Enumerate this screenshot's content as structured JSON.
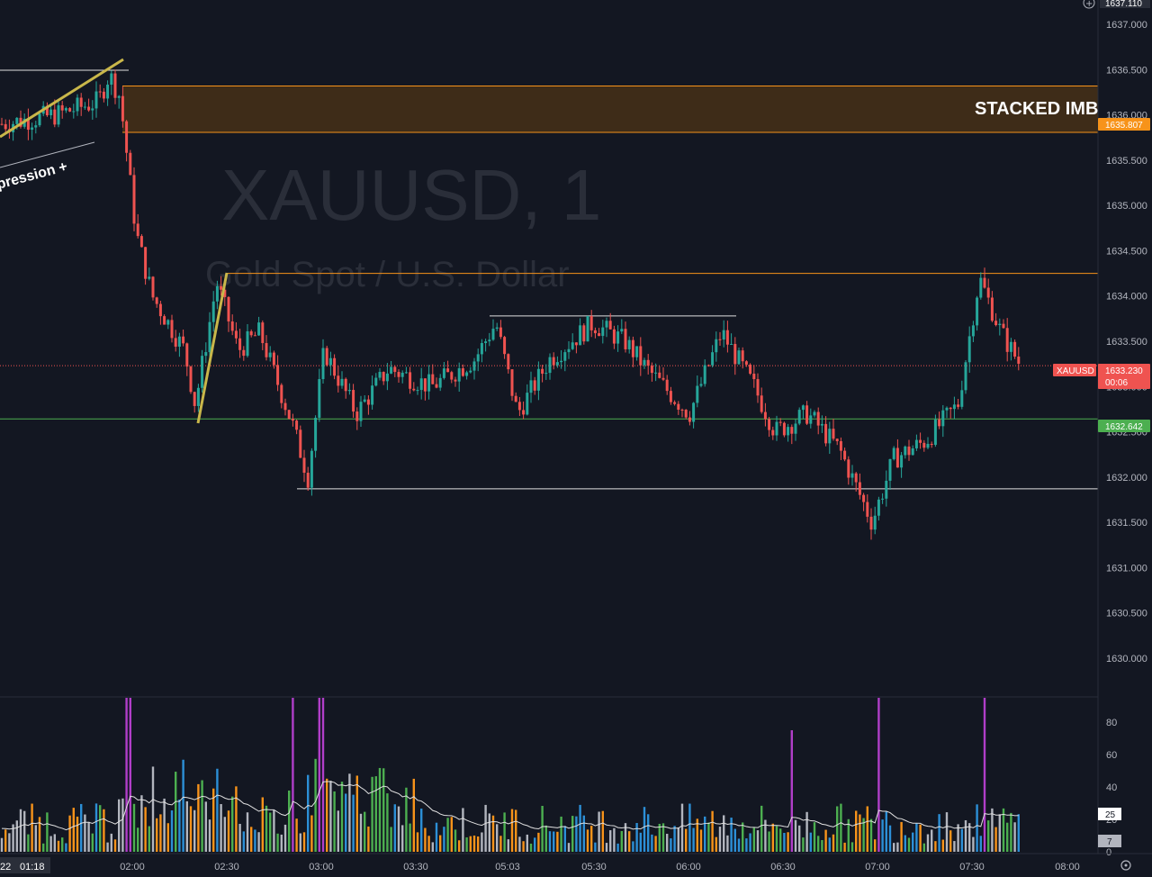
{
  "colors": {
    "background": "#131722",
    "up": "#26a69a",
    "down": "#ef5350",
    "imbalance_fill": "#4a3216",
    "imbalance_line": "#f7931a",
    "support_line": "#4caf50",
    "trend_line": "#c9b74a",
    "level_line": "#e0e0e0",
    "volume_purple": "#b03ec8",
    "volume_orange": "#f7931a",
    "volume_blue": "#2c8fd6",
    "volume_green": "#4caf50",
    "volume_gray": "#b2b5be"
  },
  "watermark": {
    "symbol": "XAUUSD, 1",
    "description": "Gold Spot / U.S. Dollar"
  },
  "annotations": {
    "zone_label": "STACKED IMB",
    "pattern_label": "pression +"
  },
  "tags": {
    "top_price": "1637.110",
    "imbalance_low": "1635.807",
    "symbol": "XAUUSD",
    "last_price": "1633.230",
    "countdown": "00:06",
    "support_price": "1632.642",
    "vol_ma": "25",
    "vol_last": "7",
    "date_fragment": "22",
    "crosshair_time": "01:18"
  },
  "chart_data": {
    "type": "candlestick",
    "price_axis": {
      "ylim": [
        1629.8,
        1637.15
      ],
      "ticks": [
        "1637.000",
        "1636.500",
        "1636.000",
        "1635.500",
        "1635.000",
        "1634.500",
        "1634.000",
        "1633.500",
        "1633.000",
        "1632.500",
        "1632.000",
        "1631.500",
        "1631.000",
        "1630.500",
        "1630.000"
      ]
    },
    "time_axis": {
      "ticks": [
        "02:00",
        "02:30",
        "03:00",
        "03:30",
        "05:03",
        "05:30",
        "06:00",
        "06:30",
        "07:00",
        "07:30",
        "08:00"
      ]
    },
    "levels": {
      "imbalance_zone": [
        1635.807,
        1636.32
      ],
      "orange_resistance": 1634.25,
      "last_price": 1633.23,
      "support": 1632.642,
      "low_level": 1631.87,
      "mid_high": 1633.78
    },
    "price_path": [
      {
        "t": 0,
        "p": 1635.9
      },
      {
        "t": 0.05,
        "p": 1636.0
      },
      {
        "t": 0.09,
        "p": 1636.15
      },
      {
        "t": 0.1,
        "p": 1636.45
      },
      {
        "t": 0.11,
        "p": 1636.2
      },
      {
        "t": 0.125,
        "p": 1634.7
      },
      {
        "t": 0.14,
        "p": 1634.0
      },
      {
        "t": 0.17,
        "p": 1633.4
      },
      {
        "t": 0.18,
        "p": 1632.8
      },
      {
        "t": 0.2,
        "p": 1634.15
      },
      {
        "t": 0.22,
        "p": 1633.4
      },
      {
        "t": 0.24,
        "p": 1633.6
      },
      {
        "t": 0.27,
        "p": 1632.6
      },
      {
        "t": 0.285,
        "p": 1632.0
      },
      {
        "t": 0.3,
        "p": 1633.4
      },
      {
        "t": 0.33,
        "p": 1632.7
      },
      {
        "t": 0.36,
        "p": 1633.2
      },
      {
        "t": 0.4,
        "p": 1633.0
      },
      {
        "t": 0.44,
        "p": 1633.3
      },
      {
        "t": 0.46,
        "p": 1633.7
      },
      {
        "t": 0.48,
        "p": 1632.7
      },
      {
        "t": 0.51,
        "p": 1633.3
      },
      {
        "t": 0.55,
        "p": 1633.7
      },
      {
        "t": 0.58,
        "p": 1633.5
      },
      {
        "t": 0.6,
        "p": 1633.2
      },
      {
        "t": 0.64,
        "p": 1632.7
      },
      {
        "t": 0.67,
        "p": 1633.6
      },
      {
        "t": 0.7,
        "p": 1633.0
      },
      {
        "t": 0.72,
        "p": 1632.5
      },
      {
        "t": 0.75,
        "p": 1632.7
      },
      {
        "t": 0.78,
        "p": 1632.3
      },
      {
        "t": 0.81,
        "p": 1631.5
      },
      {
        "t": 0.83,
        "p": 1632.2
      },
      {
        "t": 0.86,
        "p": 1632.4
      },
      {
        "t": 0.89,
        "p": 1632.8
      },
      {
        "t": 0.91,
        "p": 1634.2
      },
      {
        "t": 0.93,
        "p": 1633.6
      },
      {
        "t": 0.95,
        "p": 1633.2
      }
    ],
    "volume_axis": {
      "ylim": [
        0,
        95
      ],
      "ticks": [
        "80",
        "60",
        "40",
        "20",
        "0"
      ]
    }
  }
}
